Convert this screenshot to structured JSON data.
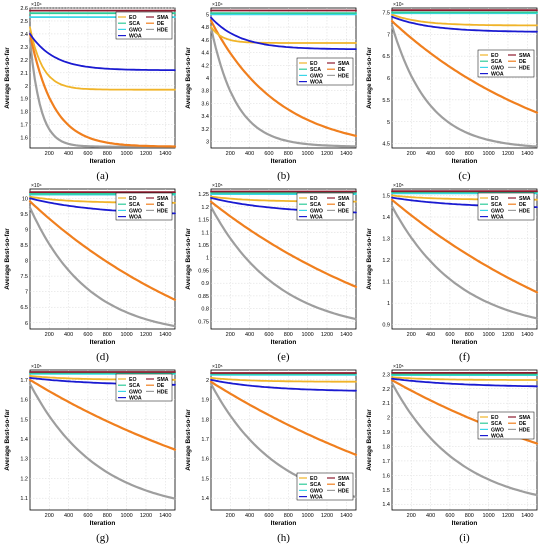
{
  "figure": {
    "xlabel": "Iteration",
    "ylabel": "Average Best-so-far"
  },
  "legend_items": [
    {
      "name": "EO",
      "color": "#f0b429",
      "marker": "+"
    },
    {
      "name": "SCA",
      "color": "#2ecc9a",
      "marker": "*"
    },
    {
      "name": "GWO",
      "color": "#3ad6e8",
      "marker": "."
    },
    {
      "name": "WOA",
      "color": "#1a1ad1",
      "marker": "v"
    },
    {
      "name": "SMA",
      "color": "#8e1a2e",
      "marker": "o"
    },
    {
      "name": "DE",
      "color": "#f07f1e",
      "marker": "^"
    },
    {
      "name": "HDE",
      "color": "#9e9e9e",
      "marker": "<"
    }
  ],
  "chart_data": [
    {
      "label": "(a)",
      "type": "line",
      "xlabel": "Iteration",
      "ylabel": "Average Best-so-far",
      "multiplier": "×10⁴",
      "xlim": [
        1,
        1500
      ],
      "ylim": [
        1.52,
        2.6
      ],
      "yticks": [
        1.6,
        1.7,
        1.8,
        1.9,
        2,
        2.1,
        2.2,
        2.3,
        2.4,
        2.5,
        2.6
      ],
      "ytick_labels": [
        "1.6",
        "1.7",
        "1.8",
        "1.9",
        "2",
        "2.1",
        "2.2",
        "2.3",
        "2.4",
        "2.5",
        "2.6"
      ],
      "xticks": [
        200,
        400,
        600,
        800,
        1000,
        1200,
        1400
      ],
      "xtick_labels": [
        "200",
        "400",
        "600",
        "800",
        "1000",
        "1200",
        "1400"
      ],
      "grid": true,
      "legend": "top-right",
      "series": [
        {
          "name": "EO",
          "start": 2.45,
          "end": 1.97,
          "tau": 130
        },
        {
          "name": "SCA",
          "start": 2.56,
          "end": 2.56,
          "tau": 300
        },
        {
          "name": "GWO",
          "start": 2.53,
          "end": 2.53,
          "tau": 300
        },
        {
          "name": "WOA",
          "start": 2.4,
          "end": 2.12,
          "tau": 250
        },
        {
          "name": "SMA",
          "start": 2.58,
          "end": 2.58,
          "tau": 300
        },
        {
          "name": "DE",
          "start": 2.4,
          "end": 1.53,
          "tau": 240
        },
        {
          "name": "HDE",
          "start": 2.35,
          "end": 1.53,
          "tau": 110
        }
      ]
    },
    {
      "label": "(b)",
      "type": "line",
      "xlabel": "Iteration",
      "ylabel": "Average Best-so-far",
      "multiplier": "×10⁴",
      "xlim": [
        1,
        1500
      ],
      "ylim": [
        2.9,
        5.1
      ],
      "yticks": [
        3,
        3.2,
        3.4,
        3.6,
        3.8,
        4,
        4.2,
        4.4,
        4.6,
        4.8,
        5
      ],
      "ytick_labels": [
        "3",
        "3.2",
        "3.4",
        "3.6",
        "3.8",
        "4",
        "4.2",
        "4.4",
        "4.6",
        "4.8",
        "5"
      ],
      "xticks": [
        200,
        400,
        600,
        800,
        1000,
        1200,
        1400
      ],
      "xtick_labels": [
        "200",
        "400",
        "600",
        "800",
        "1000",
        "1200",
        "1400"
      ],
      "grid": true,
      "legend": "right",
      "series": [
        {
          "name": "EO",
          "start": 4.8,
          "end": 4.55,
          "tau": 120
        },
        {
          "name": "SCA",
          "start": 5.02,
          "end": 5.02,
          "tau": 300
        },
        {
          "name": "GWO",
          "start": 5.0,
          "end": 5.0,
          "tau": 300
        },
        {
          "name": "WOA",
          "start": 4.95,
          "end": 4.45,
          "tau": 300
        },
        {
          "name": "SMA",
          "start": 5.06,
          "end": 5.06,
          "tau": 300
        },
        {
          "name": "DE",
          "start": 4.9,
          "end": 2.85,
          "tau": 700
        },
        {
          "name": "HDE",
          "start": 4.8,
          "end": 2.92,
          "tau": 260
        }
      ]
    },
    {
      "label": "(c)",
      "type": "line",
      "xlabel": "Iteration",
      "ylabel": "Average Best-so-far",
      "multiplier": "×10⁴",
      "xlim": [
        1,
        1500
      ],
      "ylim": [
        4.4,
        7.6
      ],
      "yticks": [
        4.5,
        5,
        5.5,
        6,
        6.5,
        7,
        7.5
      ],
      "ytick_labels": [
        "4.5",
        "5",
        "5.5",
        "6",
        "6.5",
        "7",
        "7.5"
      ],
      "xticks": [
        200,
        400,
        600,
        800,
        1000,
        1200,
        1400
      ],
      "xtick_labels": [
        "200",
        "400",
        "600",
        "800",
        "1000",
        "1200",
        "1400"
      ],
      "grid": true,
      "legend": "center-right",
      "series": [
        {
          "name": "EO",
          "start": 7.45,
          "end": 7.2,
          "tau": 300
        },
        {
          "name": "SCA",
          "start": 7.5,
          "end": 7.5,
          "tau": 300
        },
        {
          "name": "GWO",
          "start": 7.48,
          "end": 7.48,
          "tau": 300
        },
        {
          "name": "WOA",
          "start": 7.4,
          "end": 7.05,
          "tau": 400
        },
        {
          "name": "SMA",
          "start": 7.55,
          "end": 7.55,
          "tau": 300
        },
        {
          "name": "DE",
          "start": 7.3,
          "end": 3.6,
          "tau": 1800
        },
        {
          "name": "HDE",
          "start": 7.2,
          "end": 4.38,
          "tau": 380
        }
      ]
    },
    {
      "label": "(d)",
      "type": "line",
      "xlabel": "Iteration",
      "ylabel": "Average Best-so-far",
      "multiplier": "×10⁴",
      "xlim": [
        1,
        1500
      ],
      "ylim": [
        5.8,
        10.3
      ],
      "yticks": [
        6,
        6.5,
        7,
        7.5,
        8,
        8.5,
        9,
        9.5,
        10
      ],
      "ytick_labels": [
        "6",
        "6.5",
        "7",
        "7.5",
        "8",
        "8.5",
        "9",
        "9.5",
        "10"
      ],
      "xticks": [
        200,
        400,
        600,
        800,
        1000,
        1200,
        1400
      ],
      "xtick_labels": [
        "200",
        "400",
        "600",
        "800",
        "1000",
        "1200",
        "1400"
      ],
      "grid": true,
      "legend": "top-right",
      "series": [
        {
          "name": "EO",
          "start": 10.05,
          "end": 9.85,
          "tau": 400
        },
        {
          "name": "SCA",
          "start": 10.15,
          "end": 10.15,
          "tau": 300
        },
        {
          "name": "GWO",
          "start": 10.12,
          "end": 10.12,
          "tau": 300
        },
        {
          "name": "WOA",
          "start": 10.0,
          "end": 9.45,
          "tau": 700
        },
        {
          "name": "SMA",
          "start": 10.2,
          "end": 10.2,
          "tau": 300
        },
        {
          "name": "DE",
          "start": 9.9,
          "end": 3.5,
          "tau": 2200
        },
        {
          "name": "HDE",
          "start": 9.7,
          "end": 5.55,
          "tau": 600
        }
      ]
    },
    {
      "label": "(e)",
      "type": "line",
      "xlabel": "Iteration",
      "ylabel": "Average Best-so-far",
      "multiplier": "×10⁵",
      "xlim": [
        1,
        1500
      ],
      "ylim": [
        0.72,
        1.27
      ],
      "yticks": [
        0.75,
        0.8,
        0.85,
        0.9,
        0.95,
        1,
        1.05,
        1.1,
        1.15,
        1.2,
        1.25
      ],
      "ytick_labels": [
        "0.75",
        "0.8",
        "0.85",
        "0.9",
        "0.95",
        "1",
        "1.05",
        "1.1",
        "1.15",
        "1.2",
        "1.25"
      ],
      "xticks": [
        200,
        400,
        600,
        800,
        1000,
        1200,
        1400
      ],
      "xtick_labels": [
        "200",
        "400",
        "600",
        "800",
        "1000",
        "1200",
        "1400"
      ],
      "grid": true,
      "legend": "top-right",
      "series": [
        {
          "name": "EO",
          "start": 1.24,
          "end": 1.22,
          "tau": 400
        },
        {
          "name": "SCA",
          "start": 1.255,
          "end": 1.255,
          "tau": 300
        },
        {
          "name": "GWO",
          "start": 1.25,
          "end": 1.25,
          "tau": 300
        },
        {
          "name": "WOA",
          "start": 1.235,
          "end": 1.17,
          "tau": 700
        },
        {
          "name": "SMA",
          "start": 1.26,
          "end": 1.26,
          "tau": 300
        },
        {
          "name": "DE",
          "start": 1.22,
          "end": 0.5,
          "tau": 2400
        },
        {
          "name": "HDE",
          "start": 1.2,
          "end": 0.7,
          "tau": 700
        }
      ]
    },
    {
      "label": "(f)",
      "type": "line",
      "xlabel": "Iteration",
      "ylabel": "Average Best-so-far",
      "multiplier": "×10⁵",
      "xlim": [
        1,
        1500
      ],
      "ylim": [
        0.88,
        1.53
      ],
      "yticks": [
        0.9,
        1,
        1.1,
        1.2,
        1.3,
        1.4,
        1.5
      ],
      "ytick_labels": [
        "0.9",
        "1",
        "1.1",
        "1.2",
        "1.3",
        "1.4",
        "1.5"
      ],
      "xticks": [
        200,
        400,
        600,
        800,
        1000,
        1200,
        1400
      ],
      "xtick_labels": [
        "200",
        "400",
        "600",
        "800",
        "1000",
        "1200",
        "1400"
      ],
      "grid": true,
      "legend": "top-right",
      "series": [
        {
          "name": "EO",
          "start": 1.5,
          "end": 1.48,
          "tau": 400
        },
        {
          "name": "SCA",
          "start": 1.515,
          "end": 1.515,
          "tau": 300
        },
        {
          "name": "GWO",
          "start": 1.51,
          "end": 1.51,
          "tau": 300
        },
        {
          "name": "WOA",
          "start": 1.49,
          "end": 1.44,
          "tau": 700
        },
        {
          "name": "SMA",
          "start": 1.52,
          "end": 1.52,
          "tau": 300
        },
        {
          "name": "DE",
          "start": 1.48,
          "end": 0.5,
          "tau": 2600
        },
        {
          "name": "HDE",
          "start": 1.45,
          "end": 0.86,
          "tau": 700
        }
      ]
    },
    {
      "label": "(g)",
      "type": "line",
      "xlabel": "Iteration",
      "ylabel": "Average Best-so-far",
      "multiplier": "×10⁵",
      "xlim": [
        1,
        1500
      ],
      "ylim": [
        1.04,
        1.75
      ],
      "yticks": [
        1.1,
        1.2,
        1.3,
        1.4,
        1.5,
        1.6,
        1.7
      ],
      "ytick_labels": [
        "1.1",
        "1.2",
        "1.3",
        "1.4",
        "1.5",
        "1.6",
        "1.7"
      ],
      "xticks": [
        200,
        400,
        600,
        800,
        1000,
        1200,
        1400
      ],
      "xtick_labels": [
        "200",
        "400",
        "600",
        "800",
        "1000",
        "1200",
        "1400"
      ],
      "grid": true,
      "legend": "top-right",
      "series": [
        {
          "name": "EO",
          "start": 1.72,
          "end": 1.7,
          "tau": 400
        },
        {
          "name": "SCA",
          "start": 1.735,
          "end": 1.735,
          "tau": 300
        },
        {
          "name": "GWO",
          "start": 1.73,
          "end": 1.73,
          "tau": 300
        },
        {
          "name": "WOA",
          "start": 1.71,
          "end": 1.67,
          "tau": 700
        },
        {
          "name": "SMA",
          "start": 1.74,
          "end": 1.74,
          "tau": 300
        },
        {
          "name": "DE",
          "start": 1.7,
          "end": 0.8,
          "tau": 3000
        },
        {
          "name": "HDE",
          "start": 1.68,
          "end": 1.02,
          "tau": 700
        }
      ]
    },
    {
      "label": "(h)",
      "type": "line",
      "xlabel": "Iteration",
      "ylabel": "Average Best-so-far",
      "multiplier": "×10⁵",
      "xlim": [
        1,
        1500
      ],
      "ylim": [
        1.34,
        2.05
      ],
      "yticks": [
        1.4,
        1.5,
        1.6,
        1.7,
        1.8,
        1.9,
        2
      ],
      "ytick_labels": [
        "1.4",
        "1.5",
        "1.6",
        "1.7",
        "1.8",
        "1.9",
        "2"
      ],
      "xticks": [
        200,
        400,
        600,
        800,
        1000,
        1200,
        1400
      ],
      "xtick_labels": [
        "200",
        "400",
        "600",
        "800",
        "1000",
        "1200",
        "1400"
      ],
      "grid": true,
      "legend": "bottom-right",
      "series": [
        {
          "name": "EO",
          "start": 2.01,
          "end": 1.99,
          "tau": 400
        },
        {
          "name": "SCA",
          "start": 2.03,
          "end": 2.03,
          "tau": 300
        },
        {
          "name": "GWO",
          "start": 2.025,
          "end": 2.025,
          "tau": 300
        },
        {
          "name": "WOA",
          "start": 2.0,
          "end": 1.94,
          "tau": 600
        },
        {
          "name": "SMA",
          "start": 2.035,
          "end": 2.035,
          "tau": 300
        },
        {
          "name": "DE",
          "start": 1.99,
          "end": 1.0,
          "tau": 3200
        },
        {
          "name": "HDE",
          "start": 1.98,
          "end": 1.33,
          "tau": 700
        }
      ]
    },
    {
      "label": "(i)",
      "type": "line",
      "xlabel": "Iteration",
      "ylabel": "Average Best-so-far",
      "multiplier": "×10⁵",
      "xlim": [
        1,
        1500
      ],
      "ylim": [
        1.36,
        2.33
      ],
      "yticks": [
        1.4,
        1.5,
        1.6,
        1.7,
        1.8,
        1.9,
        2,
        2.1,
        2.2,
        2.3
      ],
      "ytick_labels": [
        "1.4",
        "1.5",
        "1.6",
        "1.7",
        "1.8",
        "1.9",
        "2",
        "2.1",
        "2.2",
        "2.3"
      ],
      "xticks": [
        200,
        400,
        600,
        800,
        1000,
        1200,
        1400
      ],
      "xtick_labels": [
        "200",
        "400",
        "600",
        "800",
        "1000",
        "1200",
        "1400"
      ],
      "grid": true,
      "legend": "center-right",
      "series": [
        {
          "name": "EO",
          "start": 2.28,
          "end": 2.26,
          "tau": 400
        },
        {
          "name": "SCA",
          "start": 2.3,
          "end": 2.3,
          "tau": 300
        },
        {
          "name": "GWO",
          "start": 2.295,
          "end": 2.295,
          "tau": 300
        },
        {
          "name": "WOA",
          "start": 2.27,
          "end": 2.21,
          "tau": 700
        },
        {
          "name": "SMA",
          "start": 2.31,
          "end": 2.31,
          "tau": 300
        },
        {
          "name": "DE",
          "start": 2.26,
          "end": 1.2,
          "tau": 2800
        },
        {
          "name": "HDE",
          "start": 2.24,
          "end": 1.36,
          "tau": 700
        }
      ]
    }
  ]
}
